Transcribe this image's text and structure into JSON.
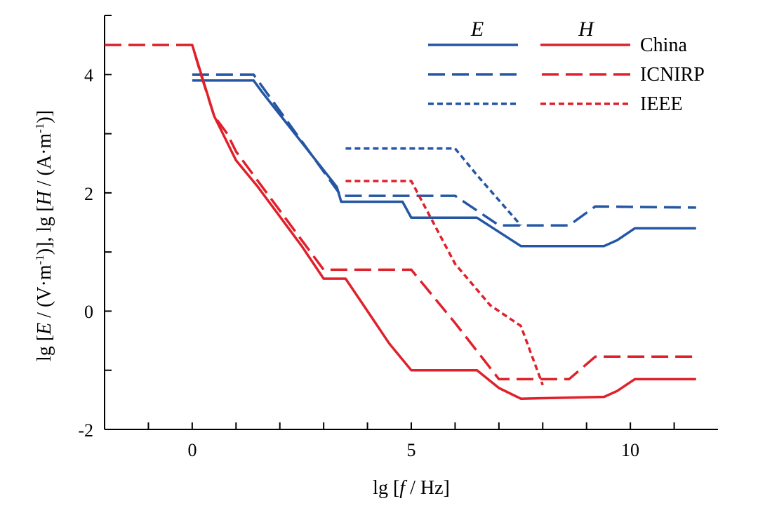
{
  "chart_data": {
    "type": "line",
    "xlabel": {
      "pre": "lg [",
      "var": "f",
      "post": " / Hz]"
    },
    "ylabel": {
      "p1": "lg [",
      "v1": "E",
      "p2": " / (V·m",
      "s1": "-1",
      "p3": ")],  lg [",
      "v2": "H",
      "p4": " / (A·m",
      "s2": "-1",
      "p5": ")]"
    },
    "xlim": [
      -2,
      12
    ],
    "ylim": [
      -2,
      5
    ],
    "xticks": [
      0,
      5,
      10
    ],
    "yticks": [
      -2,
      0,
      2,
      4
    ],
    "xtick_labels": [
      "0",
      "5",
      "10"
    ],
    "ytick_labels": [
      "-2",
      "0",
      "2",
      "4"
    ],
    "legend": {
      "placement": "top-right",
      "column_heads": [
        "E",
        "H"
      ],
      "rows": [
        "China",
        "ICNIRP",
        "IEEE"
      ]
    },
    "colors": {
      "E": "#2456a4",
      "H": "#e0202a"
    },
    "series": [
      {
        "quantity": "E",
        "standard": "China",
        "style": "solid",
        "x": [
          0,
          1.4,
          1.6,
          3.3,
          3.4,
          4.8,
          5.0,
          6.5,
          7.5,
          9.4,
          9.7,
          10.1,
          11.5
        ],
        "y": [
          3.9,
          3.9,
          3.7,
          2.1,
          1.85,
          1.85,
          1.58,
          1.58,
          1.1,
          1.1,
          1.2,
          1.4,
          1.4
        ]
      },
      {
        "quantity": "E",
        "standard": "ICNIRP",
        "style": "dashed",
        "x": [
          0,
          1.4,
          3.4,
          6.0,
          7.0,
          8.6,
          9.2,
          11.5
        ],
        "y": [
          4.0,
          4.0,
          1.95,
          1.95,
          1.45,
          1.45,
          1.77,
          1.75
        ]
      },
      {
        "quantity": "E",
        "standard": "IEEE",
        "style": "dotted",
        "x": [
          3.5,
          6.0,
          6.5,
          7.5
        ],
        "y": [
          2.75,
          2.75,
          2.3,
          1.45
        ]
      },
      {
        "quantity": "H",
        "standard": "China",
        "style": "solid",
        "x": [
          0,
          0.5,
          0.7,
          0.9,
          1.0,
          1.5,
          2.0,
          2.5,
          3.0,
          3.5,
          4.0,
          4.5,
          5.0,
          6.5,
          7.0,
          7.5,
          9.4,
          9.7,
          10.1,
          11.5
        ],
        "y": [
          4.5,
          3.3,
          3.0,
          2.7,
          2.55,
          2.1,
          1.6,
          1.1,
          0.55,
          0.55,
          0,
          -0.55,
          -1.0,
          -1.0,
          -1.3,
          -1.48,
          -1.45,
          -1.35,
          -1.15,
          -1.15
        ]
      },
      {
        "quantity": "H",
        "standard": "ICNIRP",
        "style": "dashed",
        "x": [
          -2,
          0,
          0.2,
          0.5,
          0.8,
          1.0,
          1.5,
          2.0,
          2.5,
          3.0,
          5.0,
          6.0,
          7.0,
          8.6,
          9.2,
          11.5
        ],
        "y": [
          4.5,
          4.5,
          4.0,
          3.3,
          3.0,
          2.7,
          2.2,
          1.7,
          1.2,
          0.7,
          0.7,
          -0.2,
          -1.15,
          -1.15,
          -0.77,
          -0.77
        ]
      },
      {
        "quantity": "H",
        "standard": "IEEE",
        "style": "dotted",
        "x": [
          3.5,
          5.0,
          5.5,
          6.0,
          6.8,
          7.5,
          8.0
        ],
        "y": [
          2.2,
          2.2,
          1.5,
          0.8,
          0.1,
          -0.25,
          -1.25
        ]
      }
    ]
  }
}
